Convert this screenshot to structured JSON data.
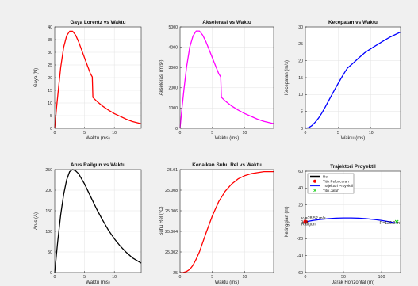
{
  "figure": {
    "background": "#f0f0f0"
  },
  "chart_data": [
    {
      "type": "line",
      "title": "Gaya Lorentz vs Waktu",
      "xlabel": "Waktu (ms)",
      "ylabel": "Gaya (N)",
      "xlim": [
        0,
        14.5
      ],
      "ylim": [
        0,
        40
      ],
      "xticks": [
        0,
        5,
        10
      ],
      "yticks": [
        0,
        5,
        10,
        15,
        20,
        25,
        30,
        35,
        40
      ],
      "grid": true,
      "series": [
        {
          "color": "#ff0000",
          "x": [
            0,
            0.3,
            0.6,
            1.0,
            1.5,
            2.0,
            2.5,
            3.0,
            3.5,
            4.0,
            4.5,
            5.0,
            5.5,
            6.0,
            6.3,
            6.4,
            7.0,
            8.0,
            9.0,
            10.0,
            11.0,
            12.0,
            13.0,
            14.5
          ],
          "y": [
            0,
            8,
            15,
            24,
            32,
            36.5,
            38.3,
            38.3,
            36.8,
            34.2,
            31.0,
            27.8,
            24.6,
            21.5,
            20.3,
            12.2,
            10.8,
            8.8,
            7.2,
            5.8,
            4.7,
            3.6,
            2.7,
            1.8
          ]
        }
      ]
    },
    {
      "type": "line",
      "title": "Akselerasi vs Waktu",
      "xlabel": "Waktu (ms)",
      "ylabel": "Akselerasi (m/s²)",
      "xlim": [
        0,
        14.5
      ],
      "ylim": [
        0,
        5000
      ],
      "xticks": [
        0,
        5,
        10
      ],
      "yticks": [
        0,
        1000,
        2000,
        3000,
        4000,
        5000
      ],
      "grid": true,
      "series": [
        {
          "color": "#ff00ff",
          "x": [
            0,
            0.3,
            0.6,
            1.0,
            1.5,
            2.0,
            2.5,
            3.0,
            3.5,
            4.0,
            4.5,
            5.0,
            5.5,
            6.0,
            6.3,
            6.4,
            7.0,
            8.0,
            9.0,
            10.0,
            11.0,
            12.0,
            13.0,
            14.5
          ],
          "y": [
            0,
            1000,
            1900,
            3000,
            4000,
            4550,
            4800,
            4800,
            4600,
            4280,
            3880,
            3480,
            3080,
            2690,
            2540,
            1530,
            1350,
            1100,
            900,
            730,
            590,
            450,
            340,
            230
          ]
        }
      ]
    },
    {
      "type": "line",
      "title": "Kecepatan vs Waktu",
      "xlabel": "Waktu (ms)",
      "ylabel": "Kecepatan (m/s)",
      "xlim": [
        0,
        14.5
      ],
      "ylim": [
        0,
        30
      ],
      "xticks": [
        0,
        5,
        10
      ],
      "yticks": [
        0,
        5,
        10,
        15,
        20,
        25,
        30
      ],
      "grid": true,
      "series": [
        {
          "color": "#0000ff",
          "x": [
            0,
            0.5,
            1.0,
            1.5,
            2.0,
            2.5,
            3.0,
            3.5,
            4.0,
            4.5,
            5.0,
            5.5,
            6.0,
            6.4,
            7.0,
            8.0,
            9.0,
            10.0,
            11.0,
            12.0,
            13.0,
            14.5
          ],
          "y": [
            0,
            0.2,
            0.8,
            1.8,
            3.0,
            4.5,
            6.2,
            8.0,
            9.8,
            11.6,
            13.3,
            15.0,
            16.6,
            17.8,
            18.8,
            20.6,
            22.3,
            23.6,
            24.8,
            26.0,
            27.1,
            28.5
          ]
        }
      ]
    },
    {
      "type": "line",
      "title": "Arus Railgun vs Waktu",
      "xlabel": "Waktu (ms)",
      "ylabel": "Arus (A)",
      "xlim": [
        0,
        14.5
      ],
      "ylim": [
        0,
        250
      ],
      "xticks": [
        0,
        5,
        10
      ],
      "yticks": [
        0,
        50,
        100,
        150,
        200,
        250
      ],
      "grid": true,
      "series": [
        {
          "color": "#000000",
          "x": [
            0,
            0.5,
            1.0,
            1.5,
            2.0,
            2.5,
            3.0,
            3.5,
            4.0,
            5.0,
            6.0,
            7.0,
            8.0,
            9.0,
            10.0,
            11.0,
            12.0,
            13.0,
            14.5
          ],
          "y": [
            0,
            75,
            140,
            190,
            225,
            245,
            250,
            247,
            240,
            215,
            185,
            155,
            128,
            103,
            82,
            64,
            49,
            36,
            23
          ]
        }
      ]
    },
    {
      "type": "line",
      "title": "Kenaikan Suhu Rel vs Waktu",
      "xlabel": "Waktu (ms)",
      "ylabel": "Suhu Rel (°C)",
      "xlim": [
        0,
        14.5
      ],
      "ylim": [
        25,
        25.01
      ],
      "xticks": [
        0,
        5,
        10
      ],
      "yticks": [
        25,
        25.002,
        25.004,
        25.006,
        25.008,
        25.01
      ],
      "grid": true,
      "series": [
        {
          "color": "#ff0000",
          "x": [
            0,
            0.5,
            1.0,
            1.5,
            2.0,
            2.5,
            3.0,
            3.5,
            4.0,
            5.0,
            6.0,
            7.0,
            8.0,
            9.0,
            10.0,
            11.0,
            12.0,
            13.0,
            14.5
          ],
          "y": [
            25,
            25.00001,
            25.0001,
            25.0003,
            25.0007,
            25.0013,
            25.002,
            25.0029,
            25.0038,
            25.0055,
            25.0069,
            25.0079,
            25.0086,
            25.0091,
            25.0094,
            25.0096,
            25.0097,
            25.0098,
            25.0098
          ]
        }
      ]
    },
    {
      "type": "line",
      "title": "Trajektori Proyektil",
      "xlabel": "Jarak Horizontal (m)",
      "ylabel": "Ketinggian (m)",
      "xlim": [
        0,
        125
      ],
      "ylim": [
        -60,
        60
      ],
      "xticks": [
        0,
        50,
        100
      ],
      "yticks": [
        -60,
        -40,
        -20,
        0,
        20,
        40,
        60
      ],
      "grid": true,
      "series": [
        {
          "color": "#0000ff",
          "x": [
            0,
            10,
            20,
            30,
            40,
            50,
            60,
            70,
            80,
            90,
            100,
            110,
            120
          ],
          "y": [
            0,
            1.6,
            2.8,
            3.7,
            4.3,
            4.6,
            4.6,
            4.3,
            3.7,
            2.8,
            1.6,
            0.1,
            -1.6
          ]
        }
      ],
      "legend": {
        "placement": "top-left",
        "entries": [
          "Rel",
          "Titik Peluncuran",
          "Trajektori Proyektil",
          "Titik Jatuh"
        ]
      },
      "annotations": [
        {
          "text": "v₀=28.52 m/s",
          "x": 0,
          "y": 3
        },
        {
          "text": "Railgun",
          "x": 0,
          "y": -4
        },
        {
          "text": "R=120.0 m",
          "x": 120,
          "y": -3
        }
      ],
      "markers": {
        "rail": {
          "color": "#000000",
          "x": [
            0,
            3
          ],
          "y": [
            0,
            0
          ]
        },
        "launch": {
          "color": "#ff0000",
          "x": 0,
          "y": 0
        },
        "landing": {
          "color": "#00cc00",
          "x": 120,
          "y": 0
        }
      }
    }
  ]
}
